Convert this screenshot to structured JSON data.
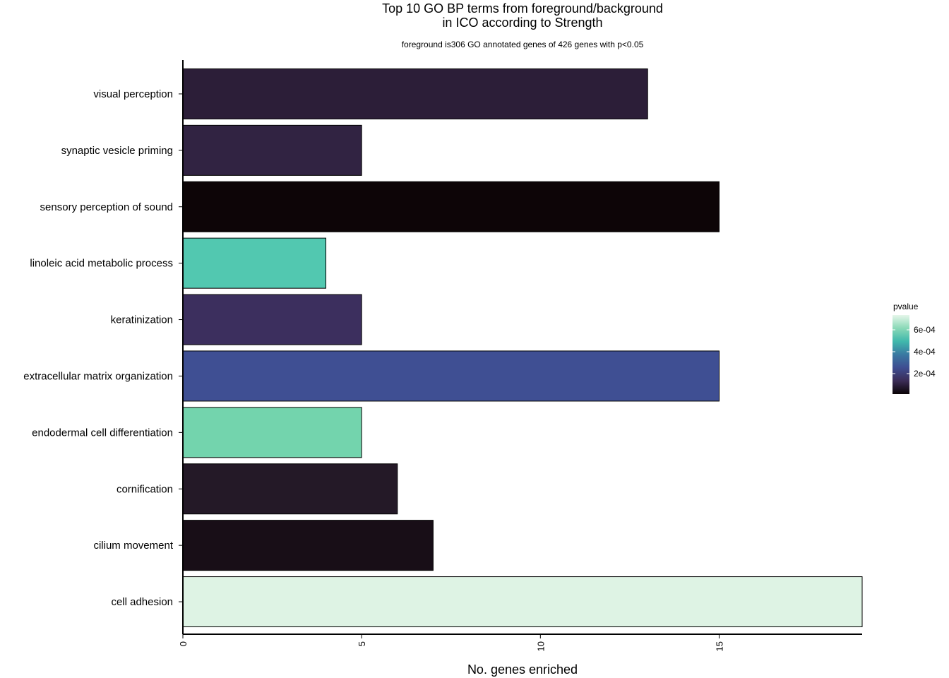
{
  "chart_data": {
    "type": "bar",
    "orientation": "horizontal",
    "title_line1": "Top 10 GO BP terms from foreground/background",
    "title_line2": "in ICO according to Strength",
    "subtitle": "foreground is306 GO annotated genes of 426 genes with p<0.05",
    "xlabel": "No. genes enriched",
    "ylabel": "",
    "xlim": [
      0,
      19
    ],
    "x_ticks": [
      0,
      5,
      10,
      15
    ],
    "categories": [
      "visual perception",
      "synaptic vesicle priming",
      "sensory perception of sound",
      "linoleic acid metabolic process",
      "keratinization",
      "extracellular matrix organization",
      "endodermal cell differentiation",
      "cornification",
      "cilium movement",
      "cell adhesion"
    ],
    "values": [
      13,
      5,
      15,
      4,
      5,
      15,
      5,
      6,
      7,
      19
    ],
    "pvalues": [
      5e-05,
      8e-05,
      2e-06,
      0.00058,
      0.00012,
      0.00027,
      0.00063,
      4e-05,
      2e-05,
      0.00072
    ],
    "bar_colors": [
      "#2c1e38",
      "#312342",
      "#0d0507",
      "#52c8b0",
      "#3c2f5e",
      "#3f4f93",
      "#73d4ad",
      "#241927",
      "#180e17",
      "#def3e4"
    ],
    "legend": {
      "title": "pvalue",
      "position": "right",
      "ticks": [
        "6e-04",
        "4e-04",
        "2e-04"
      ],
      "gradient_colors": [
        "#e6f6ea",
        "#8ad9b7",
        "#40b8ac",
        "#3a79a2",
        "#3e4d91",
        "#3b2c56",
        "#0a0305"
      ]
    }
  }
}
